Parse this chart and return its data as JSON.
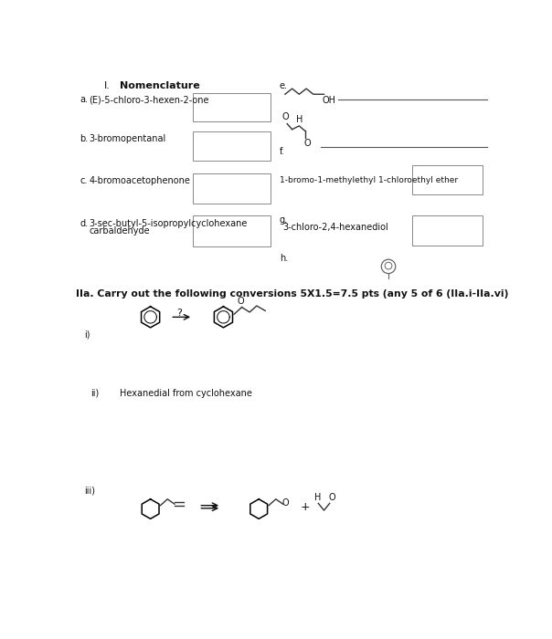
{
  "bg_color": "#ffffff",
  "section1_roman": "I.",
  "section1_title": "Nomenclature",
  "label_a": "a.",
  "text_a": "(E)-5-chloro-3-hexen-2-one",
  "label_b": "b.",
  "text_b": "3-bromopentanal",
  "label_c": "c.",
  "text_c": "4-bromoacetophenone",
  "label_d": "d.",
  "text_d1": "3-sec-butyl-5-isopropylcyclohexane",
  "text_d2": "carbaldehyde",
  "label_e": "e.",
  "label_f": "f.",
  "label_g": "g.",
  "label_h": "h.",
  "text_g_name": "1-bromo-1-methylethyl 1-chloroethyl ether",
  "text_h_name": "3-chloro-2,4-hexanediol",
  "section2_title": "IIa. Carry out the following conversions 5X1.5=7.5 pts (any 5 of 6 (IIa.i-IIa.vi)",
  "label_i": "i)",
  "label_ii": "ii)",
  "text_ii": "Hexanedial from cyclohexane",
  "label_iii": "iii)"
}
